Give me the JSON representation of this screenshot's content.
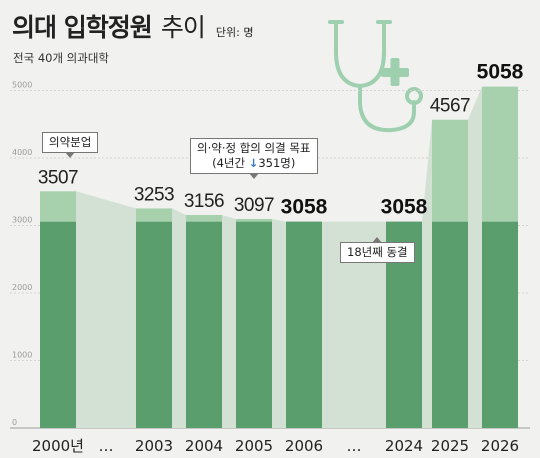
{
  "title": "의대 입학정원",
  "title_suffix": "추이",
  "unit": "단위: 명",
  "subtitle": "전국 40개 의과대학",
  "colors": {
    "bar": "#5a9e6d",
    "bar_light": "#a7d1ad",
    "band": "#d3e1d4",
    "background": "#f1f1ef"
  },
  "icons": [
    "stethoscope-icon",
    "cross-icon"
  ],
  "callouts": {
    "first": "의약분업",
    "agreement_line1": "의·약·정 합의 의결 목표",
    "agreement_line2_pre": "(4년간 ",
    "agreement_arrow": "↓",
    "agreement_line2_post": "351명)",
    "freeze": "18년째 동결"
  },
  "chart_data": {
    "type": "bar",
    "categories": [
      "2000년",
      "…",
      "2003",
      "2004",
      "2005",
      "2006",
      "…",
      "2024",
      "2025",
      "2026"
    ],
    "values": [
      3507,
      null,
      3253,
      3156,
      3097,
      3058,
      null,
      3058,
      4567,
      5058
    ],
    "value_labels": [
      "3507",
      "",
      "3253",
      "3156",
      "3097",
      "3058",
      "",
      "3058",
      "4567",
      "5058"
    ],
    "base_level": 3058,
    "ylim": [
      0,
      5500
    ],
    "yticks": [
      "0",
      "1000",
      "2000",
      "3000",
      "4000",
      "5000"
    ],
    "grid": true
  }
}
